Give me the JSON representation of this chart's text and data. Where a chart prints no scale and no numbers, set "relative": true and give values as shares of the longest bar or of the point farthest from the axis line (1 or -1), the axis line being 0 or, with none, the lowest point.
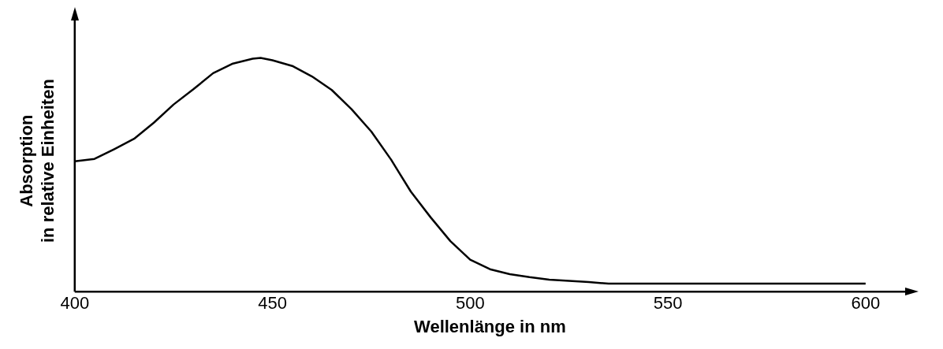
{
  "chart_data": {
    "type": "line",
    "xlabel": "Wellenlänge in nm",
    "ylabel": "Absorption\nin relative Einheiten",
    "relative": true,
    "xlim": [
      400,
      610
    ],
    "xticks": [
      400,
      450,
      500,
      550,
      600
    ],
    "grid": false,
    "legend": false,
    "marker": "none",
    "line_style": "solid",
    "x": [
      400,
      405,
      410,
      415,
      420,
      425,
      430,
      435,
      440,
      445,
      447,
      450,
      455,
      460,
      465,
      470,
      475,
      480,
      485,
      490,
      495,
      500,
      505,
      510,
      515,
      520,
      530,
      535,
      600
    ],
    "series": [
      {
        "color": "#000000",
        "values": [
          0.558,
          0.568,
          0.61,
          0.654,
          0.723,
          0.801,
          0.866,
          0.935,
          0.976,
          0.997,
          1,
          0.99,
          0.966,
          0.921,
          0.863,
          0.781,
          0.685,
          0.565,
          0.428,
          0.318,
          0.216,
          0.137,
          0.096,
          0.075,
          0.062,
          0.051,
          0.041,
          0.034,
          0.034
        ]
      }
    ]
  }
}
